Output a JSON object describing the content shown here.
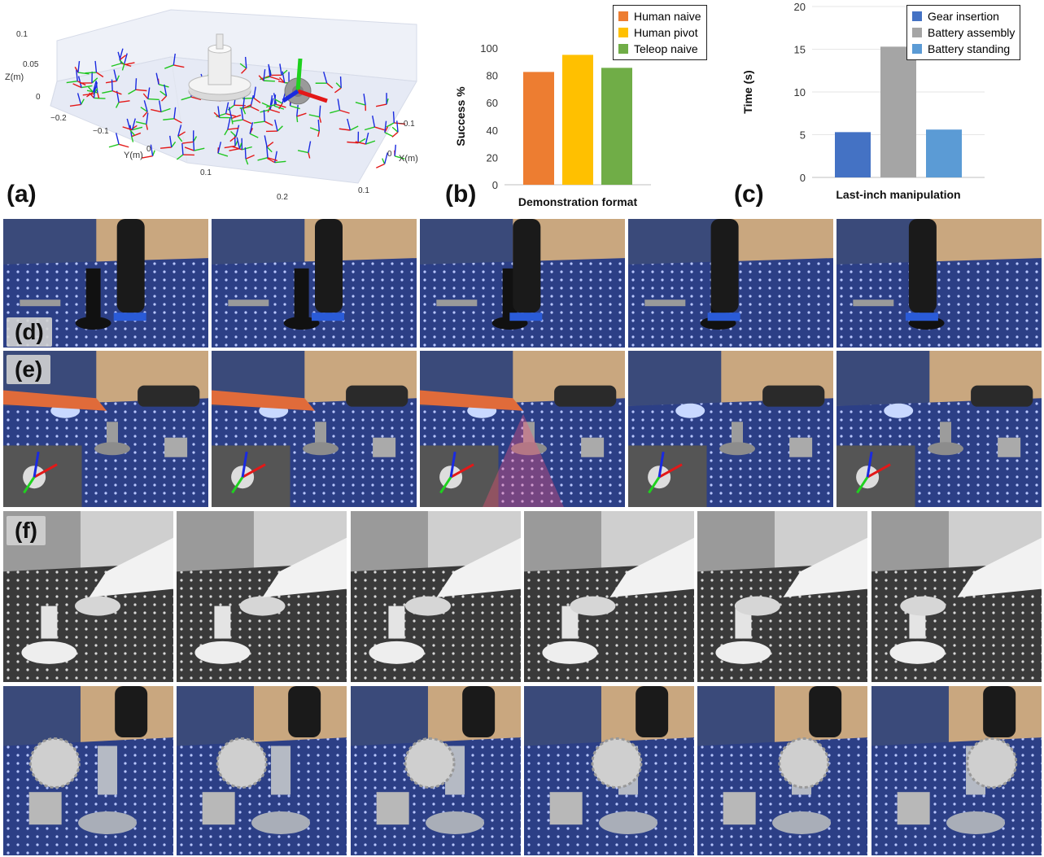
{
  "panels": {
    "a": {
      "label": "(a)",
      "axis_labels": {
        "x": "X(m)",
        "y": "Y(m)",
        "z": "Z(m)"
      },
      "z_ticks": [
        "0.1",
        "0.05",
        "0"
      ],
      "y_ticks": [
        "−0.2",
        "−0.1",
        "0",
        "0.1",
        "0.2"
      ],
      "x_ticks": [
        "−0.1",
        "0",
        "0.1"
      ]
    },
    "b": {
      "label": "(b)"
    },
    "c": {
      "label": "(c)"
    },
    "d": {
      "label": "(d)"
    },
    "e": {
      "label": "(e)"
    },
    "f": {
      "label": "(f)"
    }
  },
  "chart_data": [
    {
      "type": "bar",
      "categories": [
        "Human naive",
        "Human pivot",
        "Teleop naive"
      ],
      "values": [
        82.5,
        95,
        85.5
      ],
      "colors": [
        "#ed7d31",
        "#ffc000",
        "#70ad47"
      ],
      "ylabel": "Success %",
      "xlabel": "Demonstration format",
      "ylim": [
        0,
        100
      ],
      "yticks": [
        "0",
        "20",
        "40",
        "60",
        "80",
        "100"
      ],
      "legend": [
        "Human naive",
        "Human pivot",
        "Teleop naive"
      ],
      "legend_position": "top-right",
      "grid": false
    },
    {
      "type": "bar",
      "categories": [
        "Gear insertion",
        "Battery assembly",
        "Battery standing"
      ],
      "values": [
        5.3,
        15.3,
        5.6
      ],
      "colors": [
        "#4472c4",
        "#a5a5a5",
        "#5b9bd5"
      ],
      "ylabel": "Time (s)",
      "xlabel": "Last-inch manipulation",
      "ylim": [
        0,
        20
      ],
      "yticks": [
        "0",
        "5",
        "10",
        "15",
        "20"
      ],
      "legend": [
        "Gear insertion",
        "Battery assembly",
        "Battery standing"
      ],
      "legend_position": "top-right",
      "grid": true
    }
  ]
}
